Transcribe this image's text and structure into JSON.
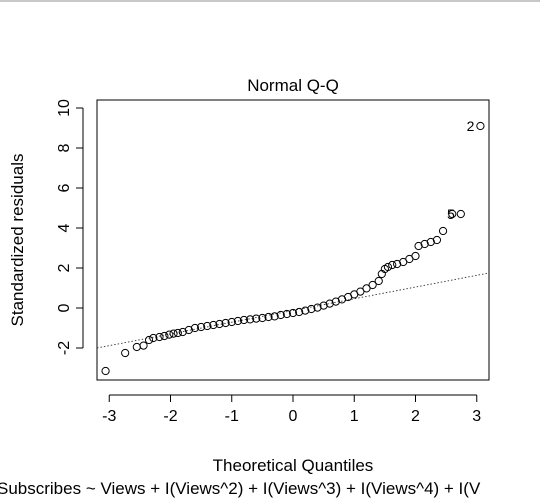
{
  "chart_data": {
    "type": "scatter",
    "title": "Normal Q-Q",
    "xlabel": "Theoretical Quantiles",
    "ylabel": "Standardized residuals",
    "subtitle": "Subscribes ~ Views + I(Views^2) + I(Views^3) + I(Views^4) + I(V",
    "xlim": [
      -3.2,
      3.2
    ],
    "ylim": [
      -3.6,
      10.4
    ],
    "x_ticks": [
      "-3",
      "-2",
      "-1",
      "0",
      "1",
      "2",
      "3"
    ],
    "y_ticks": [
      "-2",
      "0",
      "2",
      "4",
      "6",
      "8",
      "10"
    ],
    "grid": false,
    "reference_line": {
      "x": [
        -3.2,
        3.2
      ],
      "y": [
        -2.0,
        1.75
      ],
      "style": "dotted"
    },
    "point_labels": [
      {
        "text": "2",
        "x": 3.06,
        "y": 9.1
      },
      {
        "text": "5",
        "x": 2.74,
        "y": 4.7
      }
    ],
    "points": [
      [
        -3.06,
        -3.15
      ],
      [
        -2.74,
        -2.25
      ],
      [
        -2.55,
        -1.95
      ],
      [
        -2.44,
        -1.88
      ],
      [
        -2.35,
        -1.6
      ],
      [
        -2.28,
        -1.5
      ],
      [
        -2.18,
        -1.45
      ],
      [
        -2.1,
        -1.4
      ],
      [
        -2.02,
        -1.33
      ],
      [
        -1.95,
        -1.28
      ],
      [
        -1.88,
        -1.25
      ],
      [
        -1.8,
        -1.2
      ],
      [
        -1.7,
        -1.1
      ],
      [
        -1.6,
        -1.0
      ],
      [
        -1.5,
        -0.95
      ],
      [
        -1.4,
        -0.9
      ],
      [
        -1.3,
        -0.85
      ],
      [
        -1.2,
        -0.8
      ],
      [
        -1.1,
        -0.75
      ],
      [
        -1.0,
        -0.7
      ],
      [
        -0.9,
        -0.65
      ],
      [
        -0.8,
        -0.6
      ],
      [
        -0.7,
        -0.57
      ],
      [
        -0.6,
        -0.53
      ],
      [
        -0.5,
        -0.5
      ],
      [
        -0.4,
        -0.45
      ],
      [
        -0.3,
        -0.42
      ],
      [
        -0.2,
        -0.35
      ],
      [
        -0.1,
        -0.3
      ],
      [
        0.0,
        -0.25
      ],
      [
        0.1,
        -0.2
      ],
      [
        0.2,
        -0.13
      ],
      [
        0.3,
        -0.05
      ],
      [
        0.4,
        0.02
      ],
      [
        0.5,
        0.12
      ],
      [
        0.6,
        0.22
      ],
      [
        0.7,
        0.32
      ],
      [
        0.8,
        0.43
      ],
      [
        0.9,
        0.55
      ],
      [
        1.0,
        0.68
      ],
      [
        1.1,
        0.82
      ],
      [
        1.2,
        0.98
      ],
      [
        1.3,
        1.15
      ],
      [
        1.4,
        1.35
      ],
      [
        1.45,
        1.7
      ],
      [
        1.5,
        1.95
      ],
      [
        1.55,
        2.05
      ],
      [
        1.62,
        2.15
      ],
      [
        1.7,
        2.2
      ],
      [
        1.8,
        2.3
      ],
      [
        1.9,
        2.45
      ],
      [
        2.0,
        2.6
      ],
      [
        2.05,
        3.1
      ],
      [
        2.15,
        3.2
      ],
      [
        2.25,
        3.3
      ],
      [
        2.35,
        3.4
      ],
      [
        2.45,
        3.85
      ],
      [
        2.6,
        4.7
      ],
      [
        2.74,
        4.7
      ],
      [
        3.06,
        9.1
      ]
    ]
  }
}
